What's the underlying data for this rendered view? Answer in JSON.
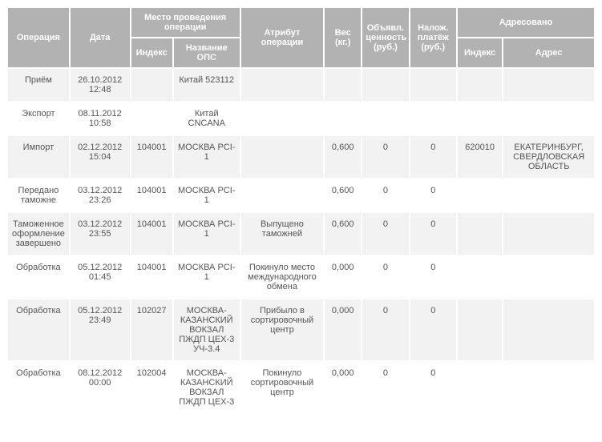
{
  "headers": {
    "operation": "Операция",
    "date": "Дата",
    "place_group": "Место проведения операции",
    "index": "Индекс",
    "ops_name": "Название ОПС",
    "attribute": "Атрибут операции",
    "weight": "Вес (кг.)",
    "declared_value": "Объявл. ценность (руб.)",
    "cod": "Налож. платёж (руб.)",
    "addressed_group": "Адресовано",
    "addr_index": "Индекс",
    "addr": "Адрес"
  },
  "rows": [
    {
      "op": "Приём",
      "date": "26.10.2012 12:48",
      "idx": "",
      "ops": "Китай 523112",
      "attr": "",
      "wt": "",
      "val": "",
      "pay": "",
      "aidx": "",
      "addr": ""
    },
    {
      "op": "Экспорт",
      "date": "08.11.2012 10:58",
      "idx": "",
      "ops": "Китай CNCANA",
      "attr": "",
      "wt": "",
      "val": "",
      "pay": "",
      "aidx": "",
      "addr": ""
    },
    {
      "op": "Импорт",
      "date": "02.12.2012 15:04",
      "idx": "104001",
      "ops": "МОСКВА PCI-1",
      "attr": "",
      "wt": "0,600",
      "val": "0",
      "pay": "0",
      "aidx": "620010",
      "addr": "ЕКАТЕРИНБУРГ, СВЕРДЛОВСКАЯ ОБЛАСТЬ"
    },
    {
      "op": "Передано таможне",
      "date": "03.12.2012 23:26",
      "idx": "104001",
      "ops": "МОСКВА PCI-1",
      "attr": "",
      "wt": "0,600",
      "val": "0",
      "pay": "0",
      "aidx": "",
      "addr": ""
    },
    {
      "op": "Таможенное оформление завершено",
      "date": "03.12.2012 23:55",
      "idx": "104001",
      "ops": "МОСКВА PCI-1",
      "attr": "Выпущено таможней",
      "wt": "0,600",
      "val": "0",
      "pay": "0",
      "aidx": "",
      "addr": ""
    },
    {
      "op": "Обработка",
      "date": "05.12.2012 01:45",
      "idx": "104001",
      "ops": "МОСКВА PCI-1",
      "attr": "Покинуло место международного обмена",
      "wt": "0,000",
      "val": "0",
      "pay": "0",
      "aidx": "",
      "addr": ""
    },
    {
      "op": "Обработка",
      "date": "05.12.2012 23:49",
      "idx": "102027",
      "ops": "МОСКВА-КАЗАНСКИЙ ВОКЗАЛ ПЖДП ЦЕХ-3 УЧ-3.4",
      "attr": "Прибыло в сортировочный центр",
      "wt": "0,000",
      "val": "0",
      "pay": "0",
      "aidx": "",
      "addr": ""
    },
    {
      "op": "Обработка",
      "date": "08.12.2012 00:00",
      "idx": "102004",
      "ops": "МОСКВА-КАЗАНСКИЙ ВОКЗАЛ ПЖДП ЦЕХ-3",
      "attr": "Покинуло сортировочный центр",
      "wt": "0,000",
      "val": "0",
      "pay": "0",
      "aidx": "",
      "addr": ""
    }
  ]
}
